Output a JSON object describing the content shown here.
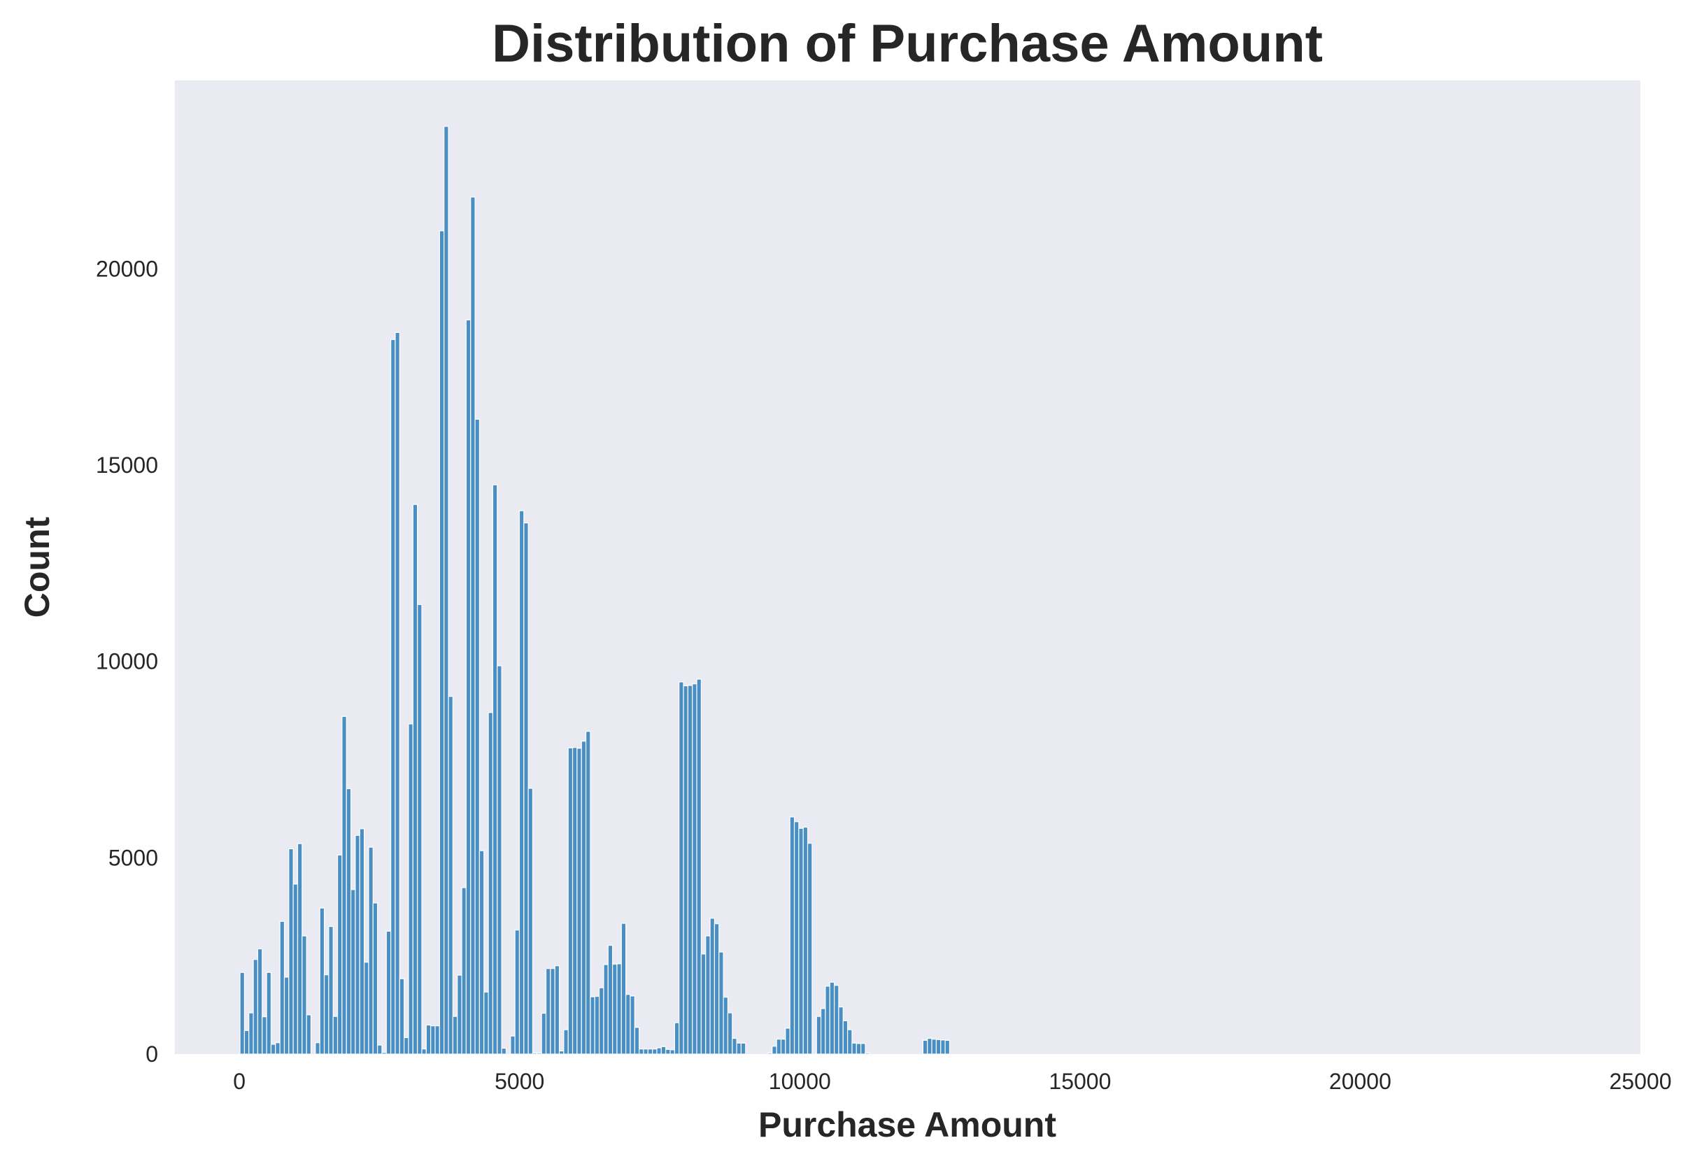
{
  "chart_data": {
    "type": "bar",
    "title": "Distribution of Purchase Amount",
    "xlabel": "Purchase Amount",
    "ylabel": "Count",
    "xlim": [
      -1150,
      25000
    ],
    "ylim": [
      0,
      24800
    ],
    "xticks": [
      0,
      5000,
      10000,
      15000,
      20000,
      25000
    ],
    "yticks": [
      0,
      5000,
      10000,
      15000,
      20000
    ],
    "grid": false,
    "bar_color": "#4a8fc4",
    "background_color": "#eaeaf2",
    "bins": {
      "start": 12,
      "width": 79.13,
      "counts": [
        2080,
        600,
        1050,
        2410,
        2680,
        950,
        2080,
        250,
        290,
        3380,
        1960,
        5230,
        4330,
        5360,
        3010,
        1000,
        0,
        290,
        3720,
        2020,
        3250,
        960,
        5070,
        8600,
        6760,
        4190,
        5570,
        5740,
        2340,
        5270,
        3850,
        230,
        40,
        3130,
        18200,
        18380,
        1920,
        420,
        8410,
        14000,
        11450,
        130,
        740,
        720,
        720,
        20970,
        23630,
        9110,
        960,
        2010,
        4240,
        18700,
        21830,
        16170,
        5180,
        1580,
        8700,
        14500,
        9890,
        150,
        0,
        460,
        3160,
        13840,
        13530,
        6770,
        30,
        30,
        1040,
        2180,
        2180,
        2250,
        80,
        620,
        7800,
        7810,
        7790,
        7970,
        8220,
        1460,
        1470,
        1690,
        2280,
        2770,
        2290,
        2300,
        3330,
        1520,
        1480,
        680,
        130,
        130,
        130,
        130,
        160,
        190,
        120,
        110,
        800,
        9480,
        9380,
        9390,
        9430,
        9550,
        2550,
        3010,
        3460,
        3320,
        2600,
        1450,
        1050,
        400,
        280,
        280,
        0,
        0,
        0,
        0,
        0,
        30,
        200,
        380,
        380,
        660,
        6040,
        5920,
        5750,
        5780,
        5370,
        0,
        960,
        1160,
        1730,
        1830,
        1750,
        1200,
        850,
        620,
        280,
        270,
        270,
        30,
        0,
        0,
        0,
        0,
        0,
        0,
        0,
        0,
        0,
        0,
        0,
        0,
        350,
        400,
        380,
        370,
        360,
        350
      ]
    }
  }
}
